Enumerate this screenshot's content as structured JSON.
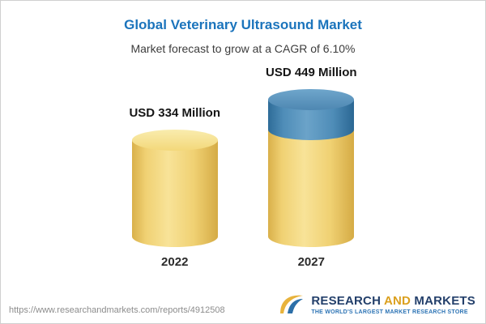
{
  "header": {
    "title": "Global Veterinary Ultrasound Market",
    "subtitle": "Market forecast to grow at a CAGR of 6.10%"
  },
  "chart_data": {
    "type": "bar",
    "title": "Global Veterinary Ultrasound Market",
    "subtitle": "Market forecast to grow at a CAGR of 6.10%",
    "categories": [
      "2022",
      "2027"
    ],
    "values": [
      334,
      449
    ],
    "value_labels": [
      "USD 334 Million",
      "USD 449 Million"
    ],
    "base_value": 334,
    "unit": "USD Million",
    "ylim": [
      0,
      449
    ],
    "grid": false,
    "legend": false,
    "colors": {
      "base_segment": "#F0D173",
      "growth_segment": "#4F8DB8",
      "title_accent": "#1B74BC"
    }
  },
  "footer": {
    "url": "https://www.researchandmarkets.com/reports/4912508",
    "logo": {
      "research": "RESEARCH",
      "and": "AND",
      "markets": "MARKETS",
      "tagline": "THE WORLD'S LARGEST MARKET RESEARCH STORE"
    }
  }
}
